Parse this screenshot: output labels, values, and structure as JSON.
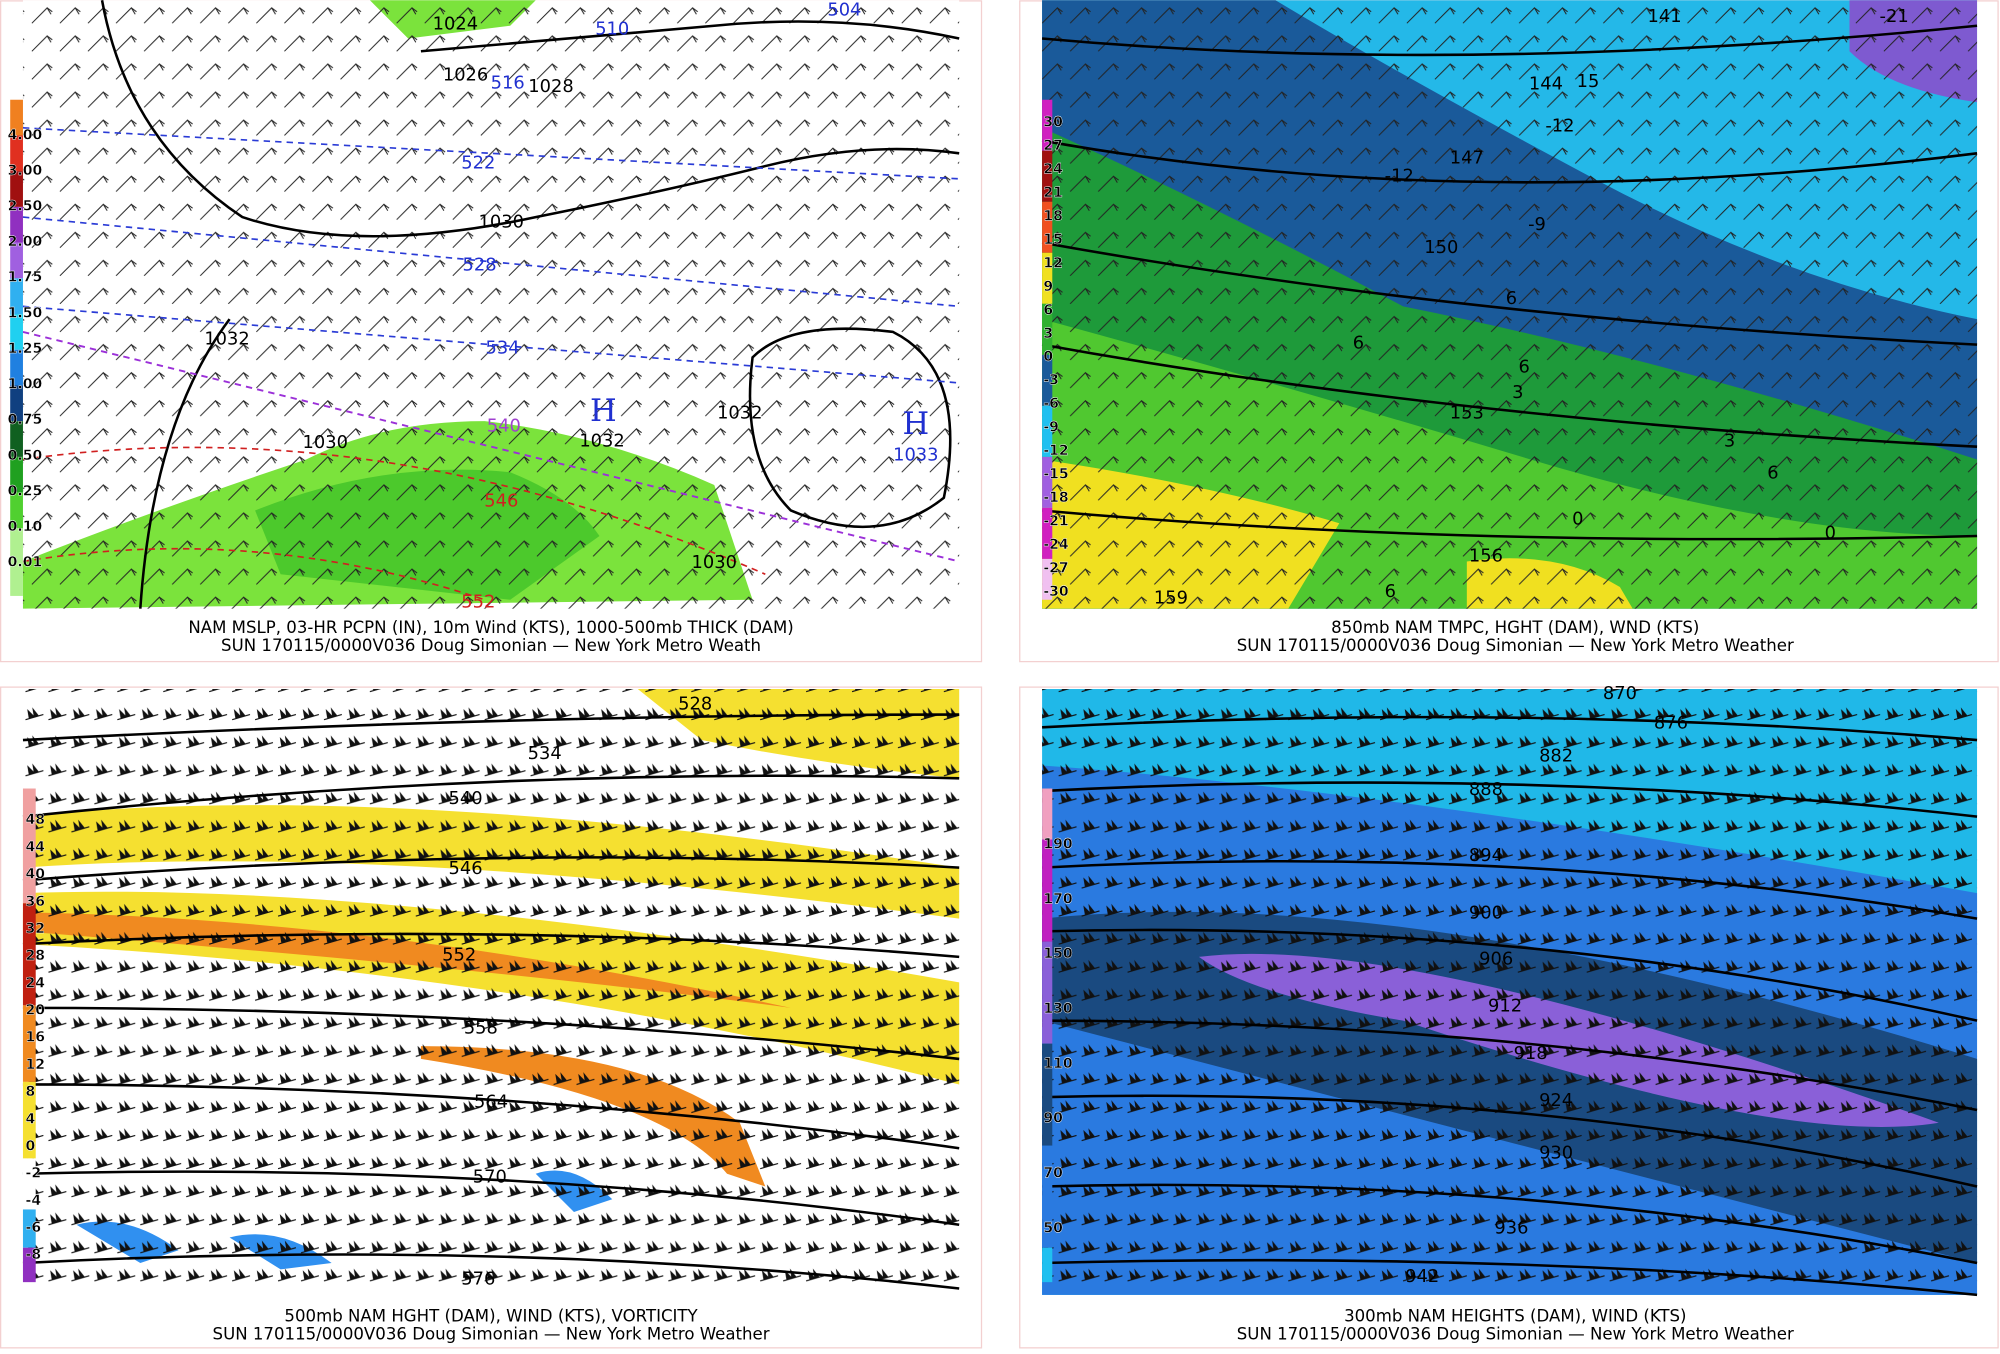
{
  "panels": [
    {
      "caption": [
        "NAM MSLP, 03-HR PCPN (IN), 10m Wind (KTS), 1000-500mb THICK (DAM)",
        "SUN 170115/0000V036 Doug Simonian — New York Metro Weath"
      ],
      "scale": [
        "4.00",
        "3.00",
        "2.50",
        "2.00",
        "1.75",
        "1.50",
        "1.25",
        "1.00",
        "0.75",
        "0.50",
        "0.25",
        "0.10",
        "0.01"
      ],
      "labels": [
        "1024",
        "1026",
        "1028",
        "510",
        "504",
        "516",
        "522",
        "1030",
        "528",
        "1032",
        "534",
        "540",
        "H",
        "1032",
        "1032",
        "H",
        "1033",
        "1030",
        "546",
        "1030",
        "552"
      ]
    },
    {
      "caption": [
        "850mb NAM TMPC, HGHT (DAM), WND (KTS)",
        "SUN 170115/0000V036 Doug Simonian — New York Metro Weather"
      ],
      "scale": [
        "30",
        "27",
        "24",
        "21",
        "18",
        "15",
        "12",
        "9",
        "6",
        "3",
        "0",
        "-3",
        "-6",
        "-9",
        "-12",
        "-15",
        "-18",
        "-21",
        "-24",
        "-27",
        "-30"
      ],
      "labels": [
        "141",
        "-21",
        "144",
        "15",
        "-12",
        "147",
        "-12",
        "-9",
        "150",
        "6",
        "6",
        "6",
        "3",
        "153",
        "3",
        "6",
        "0",
        "0",
        "156",
        "6",
        "159"
      ]
    },
    {
      "caption": [
        "500mb NAM HGHT (DAM), WIND (KTS), VORTICITY",
        "SUN 170115/0000V036 Doug Simonian — New York Metro Weather"
      ],
      "scale": [
        "48",
        "44",
        "40",
        "36",
        "32",
        "28",
        "24",
        "20",
        "16",
        "12",
        "8",
        "4",
        "0",
        "-2",
        "-4",
        "-6",
        "-8"
      ],
      "labels": [
        "528",
        "534",
        "540",
        "546",
        "552",
        "558",
        "564",
        "570",
        "576"
      ]
    },
    {
      "caption": [
        "300mb NAM HEIGHTS (DAM), WIND (KTS)",
        "SUN 170115/0000V036 Doug Simonian — New York Metro Weather"
      ],
      "scale": [
        "190",
        "170",
        "150",
        "130",
        "110",
        "90",
        "70",
        "50"
      ],
      "labels": [
        "870",
        "876",
        "882",
        "888",
        "894",
        "900",
        "906",
        "912",
        "918",
        "924",
        "930",
        "936",
        "942"
      ]
    }
  ]
}
